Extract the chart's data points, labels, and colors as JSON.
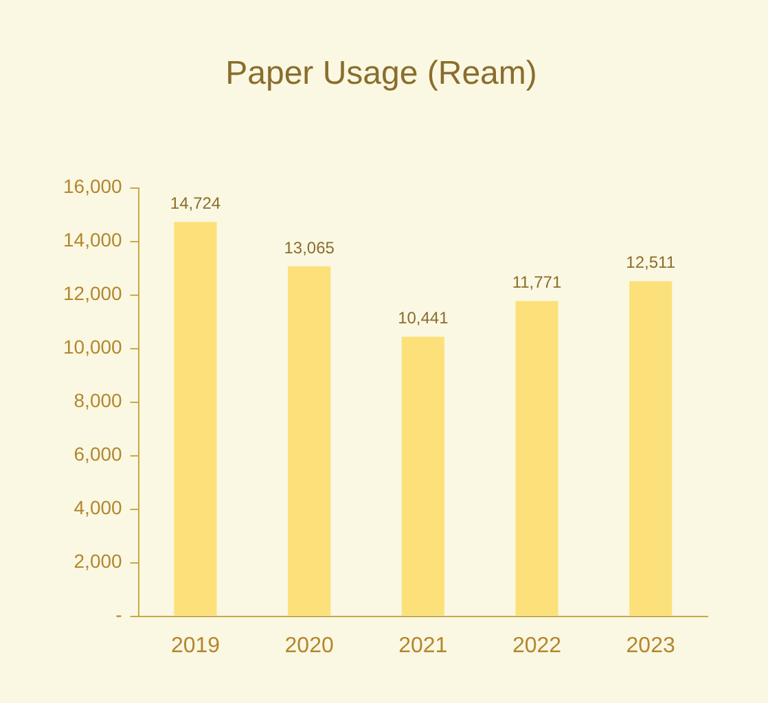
{
  "chart_data": {
    "type": "bar",
    "title": "Paper Usage (Ream)",
    "categories": [
      "2019",
      "2020",
      "2021",
      "2022",
      "2023"
    ],
    "values": [
      14724,
      13065,
      10441,
      11771,
      12511
    ],
    "value_labels": [
      "14,724",
      "13,065",
      "10,441",
      "11,771",
      "12,511"
    ],
    "color": "#fce07a",
    "ylim": [
      0,
      16000
    ],
    "yticks": [
      {
        "value": 0,
        "label": "-"
      },
      {
        "value": 2000,
        "label": "2,000"
      },
      {
        "value": 4000,
        "label": "4,000"
      },
      {
        "value": 6000,
        "label": "6,000"
      },
      {
        "value": 8000,
        "label": "8,000"
      },
      {
        "value": 10000,
        "label": "10,000"
      },
      {
        "value": 12000,
        "label": "12,000"
      },
      {
        "value": 14000,
        "label": "14,000"
      },
      {
        "value": 16000,
        "label": "16,000"
      }
    ],
    "grid": false,
    "legend": false
  }
}
